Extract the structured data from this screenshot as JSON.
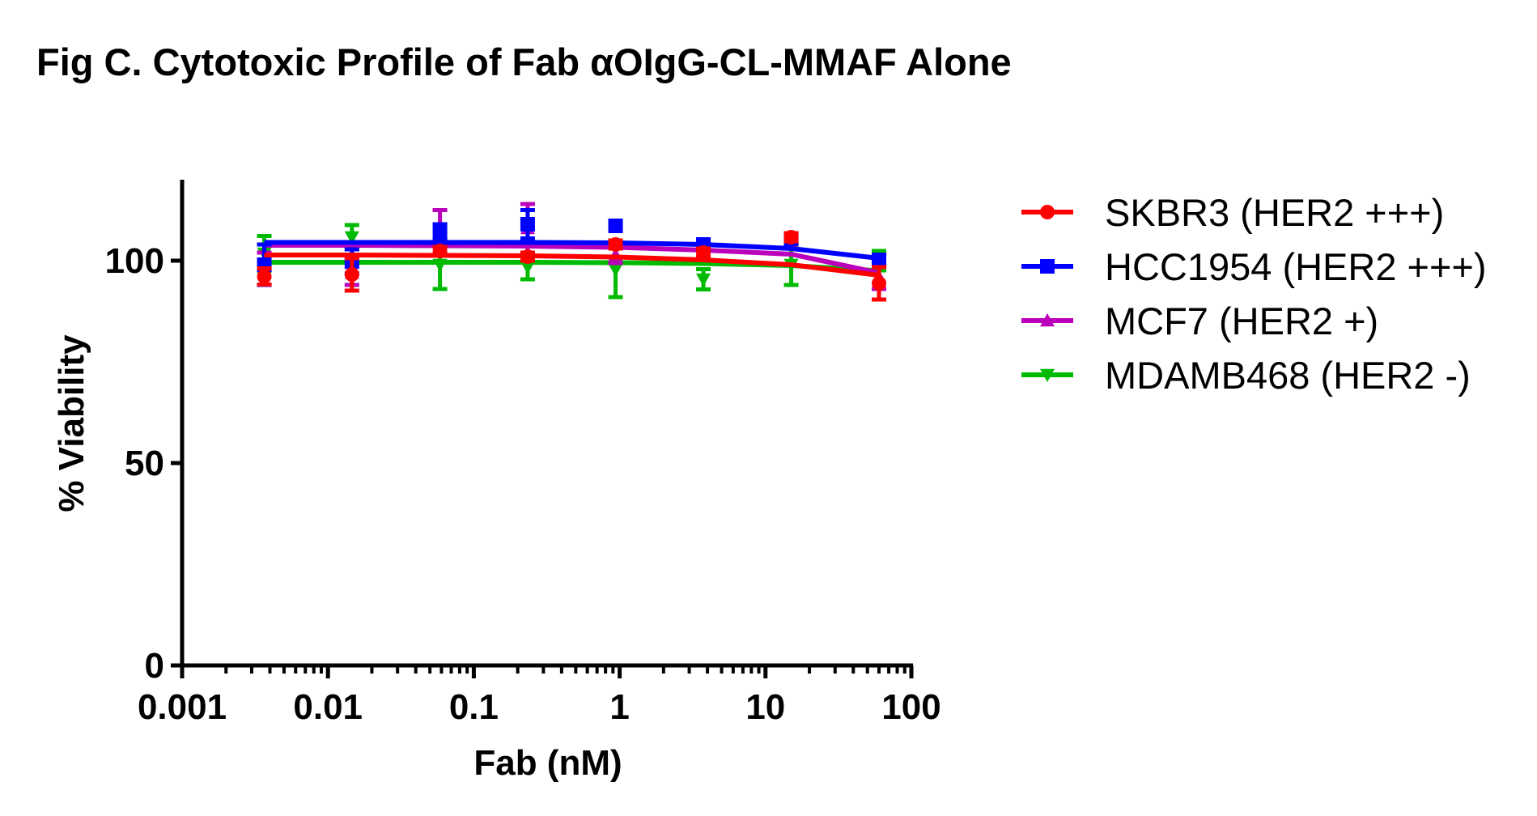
{
  "chart_data": {
    "type": "scatter",
    "title": "Fig C. Cytotoxic Profile of Fab αOIgG-CL-MMAF Alone",
    "xlabel": "Fab (nM)",
    "ylabel": "% Viability",
    "xscale": "log",
    "xlim": [
      0.001,
      100
    ],
    "ylim": [
      0,
      120
    ],
    "x_ticks": [
      0.001,
      0.01,
      0.1,
      1,
      10,
      100
    ],
    "x_tick_labels": [
      "0.001",
      "0.01",
      "0.1",
      "1",
      "10",
      "100"
    ],
    "y_ticks": [
      0,
      50,
      100
    ],
    "y_tick_labels": [
      "0",
      "50",
      "100"
    ],
    "grid": false,
    "legend_position": "right",
    "x": [
      0.00366,
      0.0146,
      0.0586,
      0.234,
      0.9375,
      3.75,
      15,
      60
    ],
    "series": [
      {
        "name": "SKBR3 (HER2 +++)",
        "color": "#ff0000",
        "marker": "circle",
        "values": [
          96.1,
          96.6,
          102.4,
          101.0,
          104.0,
          102.0,
          105.8,
          94.4
        ],
        "errors": [
          2.0,
          4.0,
          1.0,
          1.0,
          1.0,
          1.0,
          1.0,
          4.0
        ],
        "fit": [
          101.4,
          101.4,
          101.3,
          101.2,
          100.9,
          100.2,
          99.0,
          96.4
        ]
      },
      {
        "name": "HCC1954 (HER2 +++)",
        "color": "#0000ff",
        "marker": "square",
        "values": [
          99.0,
          99.8,
          107.0,
          109.0,
          108.6,
          104.0,
          105.4,
          100.0
        ],
        "errors": [
          5.0,
          3.0,
          2.0,
          3.5,
          1.0,
          1.0,
          1.0,
          1.5
        ],
        "fit": [
          104.5,
          104.5,
          104.5,
          104.5,
          104.4,
          104.0,
          103.0,
          100.6
        ]
      },
      {
        "name": "MCF7 (HER2 +)",
        "color": "#bb00bb",
        "marker": "triangle-up",
        "values": [
          100.0,
          97.0,
          107.0,
          108.0,
          101.4,
          102.0,
          104.0,
          96.0
        ],
        "errors": [
          2.0,
          3.0,
          5.5,
          6.0,
          2.0,
          1.0,
          1.0,
          3.0
        ],
        "fit": [
          103.8,
          103.8,
          103.7,
          103.6,
          103.3,
          102.6,
          101.6,
          97.0
        ]
      },
      {
        "name": "MDAMB468 (HER2 -)",
        "color": "#00bb00",
        "marker": "triangle-down",
        "values": [
          101.8,
          105.8,
          99.0,
          98.4,
          97.8,
          95.4,
          99.0,
          100.0
        ],
        "errors": [
          4.3,
          3.0,
          6.0,
          3.0,
          6.8,
          2.5,
          5.0,
          2.4
        ],
        "fit": [
          99.6,
          99.6,
          99.6,
          99.6,
          99.5,
          99.3,
          98.8,
          97.5
        ]
      }
    ]
  }
}
